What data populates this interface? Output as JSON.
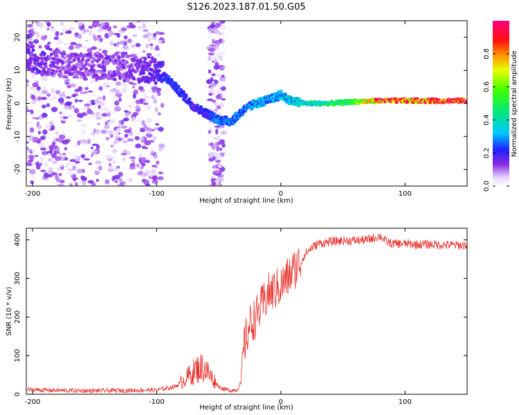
{
  "title": "S126.2023.187.01.50.G05",
  "colors": {
    "snr_line": "#e8302a",
    "frame": "#000000"
  },
  "chart_data": [
    {
      "type": "heatmap",
      "xlabel": "Height of straight line (km)",
      "ylabel": "Frequency (Hz)",
      "xlim": [
        -205,
        150
      ],
      "ylim": [
        -25,
        25
      ],
      "xticks": [
        -200,
        -100,
        0,
        100
      ],
      "yticks": [
        -20,
        -10,
        0,
        10,
        20
      ],
      "colorbar": {
        "label": "Normalized spectral amplitude",
        "range": [
          0,
          1
        ],
        "ticks": [
          0.0,
          0.2,
          0.4,
          0.6,
          0.8
        ],
        "colormap": "rainbow (white-violet-blue-cyan-green-yellow-red-magenta)"
      },
      "ridge": {
        "description": "dominant frequency ridge",
        "x": [
          -205,
          -190,
          -175,
          -160,
          -140,
          -120,
          -100,
          -90,
          -80,
          -70,
          -60,
          -50,
          -40,
          -30,
          -20,
          -10,
          0,
          10,
          20,
          40,
          60,
          80,
          100,
          120,
          150
        ],
        "y": [
          14,
          13,
          12,
          11,
          11.5,
          10.5,
          10,
          7,
          3,
          -1,
          -3,
          -5,
          -5.5,
          -2,
          0,
          1,
          2.5,
          0.5,
          0,
          0,
          0.5,
          0.8,
          0.8,
          0.8,
          0.8
        ],
        "amplitude": [
          0.15,
          0.15,
          0.12,
          0.12,
          0.13,
          0.12,
          0.18,
          0.22,
          0.22,
          0.2,
          0.22,
          0.28,
          0.3,
          0.28,
          0.32,
          0.3,
          0.35,
          0.35,
          0.4,
          0.45,
          0.55,
          0.85,
          0.9,
          0.9,
          0.88
        ]
      }
    },
    {
      "type": "line",
      "xlabel": "Height of straight line (km)",
      "ylabel": "SNR (10 * v/v)",
      "xlim": [
        -205,
        150
      ],
      "ylim": [
        0,
        430
      ],
      "xticks": [
        -200,
        -100,
        0,
        100
      ],
      "yticks": [
        0,
        100,
        200,
        300,
        400
      ],
      "series": [
        {
          "x": [
            -205,
            -180,
            -150,
            -120,
            -100,
            -85,
            -75,
            -68,
            -62,
            -55,
            -50,
            -45,
            -40,
            -35,
            -32,
            -30,
            -25,
            -20,
            -15,
            -10,
            -5,
            0,
            5,
            10,
            15,
            20,
            25,
            30,
            40,
            50,
            60,
            70,
            75,
            80,
            85,
            90,
            100,
            110,
            120,
            130,
            140,
            150
          ],
          "y": [
            12,
            10,
            9,
            10,
            11,
            20,
            45,
            65,
            70,
            40,
            20,
            12,
            10,
            12,
            30,
            120,
            180,
            200,
            230,
            260,
            270,
            280,
            300,
            320,
            340,
            365,
            380,
            390,
            395,
            398,
            398,
            400,
            405,
            410,
            395,
            390,
            390,
            388,
            388,
            387,
            386,
            386
          ]
        }
      ]
    }
  ]
}
